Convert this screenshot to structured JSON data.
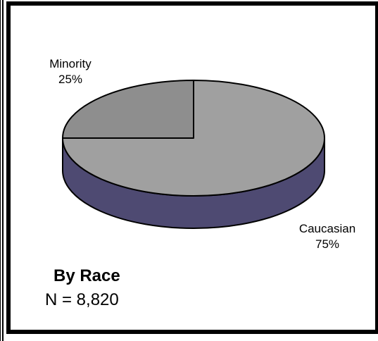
{
  "chart_data": {
    "type": "pie",
    "style": "3d",
    "title": "By Race",
    "subtitle": "N = 8,820",
    "slices": [
      {
        "label": "Minority",
        "value": 25,
        "display": "25%",
        "color": "#8e8e8e"
      },
      {
        "label": "Caucasian",
        "value": 75,
        "display": "75%",
        "color": "#a0a0a0"
      }
    ],
    "side_color": "#4e4a72",
    "outline_color": "#000000",
    "legend": "none"
  },
  "colors": {
    "frame": "#000000",
    "background": "#ffffff"
  }
}
